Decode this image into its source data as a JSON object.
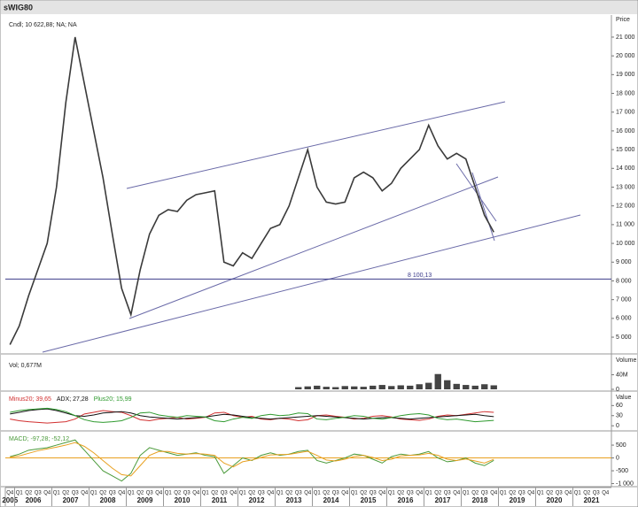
{
  "title": "sWIG80",
  "chart_data": [
    {
      "type": "line",
      "legend_text": "Cndl; 10 622,88; NA; NA",
      "ylabel": "Price",
      "categories": [
        "Q4",
        "Q1",
        "Q2",
        "Q3",
        "Q4",
        "Q1",
        "Q2",
        "Q3",
        "Q4",
        "Q1",
        "Q2",
        "Q3",
        "Q4",
        "Q1",
        "Q2",
        "Q3",
        "Q4",
        "Q1",
        "Q2",
        "Q3",
        "Q4",
        "Q1",
        "Q2",
        "Q3",
        "Q4",
        "Q1",
        "Q2",
        "Q3",
        "Q4",
        "Q1",
        "Q2",
        "Q3",
        "Q4",
        "Q1",
        "Q2",
        "Q3",
        "Q4",
        "Q1",
        "Q2",
        "Q3",
        "Q4",
        "Q1",
        "Q2",
        "Q3",
        "Q4",
        "Q1",
        "Q2",
        "Q3",
        "Q4",
        "Q1",
        "Q2",
        "Q3",
        "Q4",
        "Q1",
        "Q2",
        "Q3",
        "Q4",
        "Q1",
        "Q2",
        "Q3",
        "Q4",
        "Q1",
        "Q2",
        "Q3",
        "Q4"
      ],
      "years": [
        "2005",
        "2006",
        "2007",
        "2008",
        "2009",
        "2010",
        "2011",
        "2012",
        "2013",
        "2014",
        "2015",
        "2016",
        "2017",
        "2018",
        "2019",
        "2020",
        "2021"
      ],
      "series": [
        {
          "name": "sWIG80",
          "color": "#3a3a3a",
          "values": [
            4600,
            5600,
            7200,
            8600,
            10000,
            13000,
            17500,
            21000,
            18500,
            16000,
            13500,
            10500,
            7600,
            6200,
            8600,
            10500,
            11500,
            11800,
            11700,
            12300,
            12600,
            12700,
            12800,
            9000,
            8800,
            9500,
            9200,
            10000,
            10800,
            11000,
            12000,
            13500,
            15000,
            13000,
            12200,
            12100,
            12200,
            13500,
            13800,
            13500,
            12800,
            13200,
            14000,
            14500,
            15000,
            16300,
            15200,
            14500,
            14800,
            14500,
            13000,
            11500,
            10600,
            null,
            null,
            null,
            null,
            null,
            null,
            null,
            null,
            null,
            null,
            null,
            null
          ]
        }
      ],
      "hline": {
        "value": 8100.13,
        "label": "8 100,13",
        "color": "#3b3b8a"
      },
      "ylim": [
        4200,
        22130
      ],
      "yticks": [
        {
          "value": 5000,
          "label": "5 000"
        },
        {
          "value": 6000,
          "label": "6 000"
        },
        {
          "value": 7000,
          "label": "7 000"
        },
        {
          "value": 8000,
          "label": "8 000"
        },
        {
          "value": 9000,
          "label": "9 000"
        },
        {
          "value": 10000,
          "label": "10 000"
        },
        {
          "value": 11000,
          "label": "11 000"
        },
        {
          "value": 12000,
          "label": "12 000"
        },
        {
          "value": 13000,
          "label": "13 000"
        },
        {
          "value": 14000,
          "label": "14 000"
        },
        {
          "value": 15000,
          "label": "15 000"
        },
        {
          "value": 16000,
          "label": "16 000"
        },
        {
          "value": 17000,
          "label": "17 000"
        },
        {
          "value": 18000,
          "label": "18 000"
        },
        {
          "value": 19000,
          "label": "19 000"
        },
        {
          "value": 20000,
          "label": "20 000"
        },
        {
          "value": 21000,
          "label": "21 000"
        }
      ]
    },
    {
      "type": "bar",
      "legend_text": "Vol; 0,677M",
      "ylabel": "Volume",
      "color": "#444444",
      "values": [
        null,
        null,
        null,
        null,
        null,
        null,
        null,
        null,
        null,
        null,
        null,
        null,
        null,
        null,
        null,
        null,
        null,
        null,
        null,
        null,
        null,
        null,
        null,
        null,
        null,
        null,
        null,
        null,
        null,
        null,
        null,
        6,
        8,
        10,
        7,
        6,
        9,
        8,
        7,
        10,
        12,
        9,
        11,
        10,
        14,
        18,
        42,
        25,
        15,
        12,
        10,
        14,
        11,
        null,
        null,
        null,
        null,
        null,
        null,
        null,
        null,
        null,
        null,
        null,
        null
      ],
      "ylim": [
        0,
        90
      ],
      "yticks": [
        0,
        {
          "value": 40,
          "label": "40M"
        }
      ]
    },
    {
      "type": "line",
      "legend_series_text": [
        "Minus20; 39,65",
        "ADX; 27,28",
        "Plus20; 15,99"
      ],
      "ylabel": "Value",
      "series": [
        {
          "name": "Minus20",
          "color": "#d23030",
          "values": [
            20,
            15,
            12,
            10,
            8,
            10,
            12,
            20,
            35,
            40,
            45,
            42,
            40,
            30,
            18,
            15,
            20,
            22,
            25,
            20,
            22,
            25,
            38,
            40,
            30,
            25,
            28,
            20,
            18,
            22,
            20,
            15,
            18,
            30,
            32,
            28,
            25,
            20,
            22,
            28,
            30,
            26,
            20,
            18,
            16,
            20,
            28,
            32,
            30,
            34,
            38,
            42,
            40,
            null,
            null,
            null,
            null,
            null,
            null,
            null,
            null,
            null,
            null,
            null,
            null
          ]
        },
        {
          "name": "ADX",
          "color": "#111111",
          "values": [
            35,
            40,
            45,
            48,
            50,
            45,
            38,
            30,
            28,
            32,
            38,
            40,
            42,
            38,
            30,
            26,
            24,
            22,
            20,
            22,
            24,
            26,
            30,
            34,
            32,
            28,
            24,
            22,
            20,
            22,
            24,
            26,
            28,
            30,
            28,
            26,
            24,
            22,
            20,
            22,
            24,
            24,
            22,
            20,
            22,
            24,
            26,
            28,
            30,
            32,
            34,
            30,
            27,
            null,
            null,
            null,
            null,
            null,
            null,
            null,
            null,
            null,
            null,
            null,
            null
          ]
        },
        {
          "name": "Plus20",
          "color": "#2e9a2e",
          "values": [
            40,
            45,
            48,
            50,
            52,
            48,
            42,
            30,
            18,
            12,
            10,
            12,
            15,
            25,
            38,
            40,
            32,
            28,
            25,
            30,
            28,
            26,
            15,
            12,
            20,
            25,
            22,
            30,
            34,
            30,
            32,
            38,
            36,
            20,
            18,
            22,
            25,
            30,
            28,
            22,
            20,
            24,
            30,
            34,
            36,
            32,
            22,
            18,
            20,
            16,
            12,
            14,
            16,
            null,
            null,
            null,
            null,
            null,
            null,
            null,
            null,
            null,
            null,
            null,
            null
          ]
        }
      ],
      "ylim": [
        -10,
        95
      ],
      "yticks": [
        0,
        30,
        60
      ]
    },
    {
      "type": "line",
      "legend_series_text": [
        "MACD; -97,28; -52,12"
      ],
      "ylabel": null,
      "series": [
        {
          "name": "MACD",
          "color": "#4a9a3a",
          "values": [
            50,
            150,
            300,
            350,
            400,
            500,
            600,
            700,
            300,
            -100,
            -500,
            -700,
            -900,
            -600,
            100,
            400,
            300,
            200,
            100,
            150,
            200,
            100,
            50,
            -600,
            -300,
            0,
            -100,
            100,
            200,
            100,
            150,
            250,
            300,
            -100,
            -200,
            -100,
            0,
            150,
            100,
            -50,
            -200,
            50,
            150,
            100,
            150,
            250,
            0,
            -150,
            -100,
            0,
            -200,
            -300,
            -97.28,
            null,
            null,
            null,
            null,
            null,
            null,
            null,
            null,
            null,
            null,
            null,
            null
          ]
        },
        {
          "name": "Signal",
          "color": "#e8a020",
          "values": [
            30,
            80,
            180,
            280,
            350,
            420,
            500,
            600,
            450,
            200,
            -100,
            -400,
            -650,
            -700,
            -300,
            100,
            250,
            250,
            180,
            150,
            170,
            150,
            100,
            -200,
            -350,
            -150,
            -80,
            20,
            120,
            130,
            140,
            200,
            260,
            100,
            -80,
            -120,
            -50,
            60,
            100,
            20,
            -100,
            -50,
            80,
            100,
            120,
            180,
            100,
            -50,
            -100,
            -40,
            -120,
            -200,
            -52.12,
            null,
            null,
            null,
            null,
            null,
            null,
            null,
            null,
            null,
            null,
            null,
            null
          ]
        }
      ],
      "ylim": [
        -1050,
        950
      ],
      "yticks": [
        {
          "value": -1000,
          "label": "-1 000"
        },
        -500,
        0,
        500
      ]
    }
  ]
}
